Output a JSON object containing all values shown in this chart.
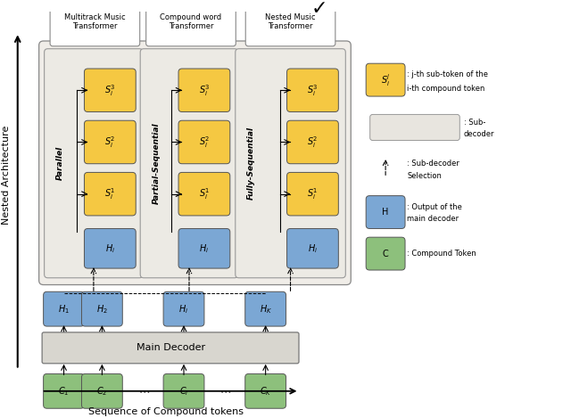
{
  "fig_width": 6.4,
  "fig_height": 4.69,
  "dpi": 100,
  "bg_color": "#ffffff",
  "yellow_color": "#F5C842",
  "blue_color": "#7BA7D4",
  "green_color": "#8DC07C",
  "panel_bg": "#F0EDE8",
  "subdec_bg": "#ECEAE4",
  "light_gray": "#E8E5DF",
  "main_dec_bg": "#D8D6CF",
  "xlabel": "Sequence of Compound tokens",
  "ylabel": "Nested Architecture",
  "title_multitrack": "Multitrack Music\nTransformer",
  "title_compound": "Compound word\nTransformer",
  "title_nested": "Nested Music\nTransformer",
  "label_parallel": "Parallel",
  "label_partial": "Partial-Sequential",
  "label_fully": "Fully-Sequential",
  "main_decoder_label": "Main Decoder"
}
